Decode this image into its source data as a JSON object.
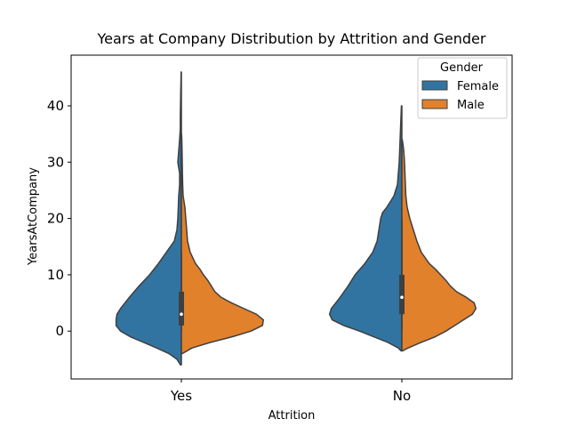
{
  "chart_data": {
    "type": "violin",
    "title": "Years at Company Distribution by Attrition and Gender",
    "xlabel": "Attrition",
    "ylabel": "YearsAtCompany",
    "categories": [
      "Yes",
      "No"
    ],
    "ylim": [
      -8.5,
      49
    ],
    "yticks": [
      0,
      10,
      20,
      30,
      40
    ],
    "legend": {
      "title": "Gender",
      "position": "top-right",
      "entries": [
        "Female",
        "Male"
      ]
    },
    "colors": {
      "Female": "#3274a1",
      "Male": "#e1812c",
      "outline": "#3f3f3f"
    },
    "series": [
      {
        "name": "Female",
        "side": "left",
        "profiles": [
          [
            [
              -6,
              0.01
            ],
            [
              -5,
              0.05
            ],
            [
              -4,
              0.14
            ],
            [
              -3,
              0.28
            ],
            [
              -2,
              0.43
            ],
            [
              -1,
              0.58
            ],
            [
              0,
              0.69
            ],
            [
              1,
              0.74
            ],
            [
              2,
              0.74
            ],
            [
              3,
              0.73
            ],
            [
              4,
              0.69
            ],
            [
              5,
              0.64
            ],
            [
              6,
              0.59
            ],
            [
              8,
              0.48
            ],
            [
              10,
              0.36
            ],
            [
              12,
              0.26
            ],
            [
              14,
              0.17
            ],
            [
              16,
              0.08
            ],
            [
              18,
              0.05
            ],
            [
              20,
              0.04
            ],
            [
              22,
              0.035
            ],
            [
              24,
              0.03
            ],
            [
              26,
              0.02
            ],
            [
              28,
              0.02
            ],
            [
              30,
              0.04
            ],
            [
              32,
              0.03
            ],
            [
              34,
              0.02
            ],
            [
              36,
              0.012
            ],
            [
              38,
              0.012
            ],
            [
              40,
              0.01
            ],
            [
              42,
              0.008
            ],
            [
              44,
              0.005
            ],
            [
              46,
              0.003
            ]
          ],
          [
            [
              -3.5,
              0.01
            ],
            [
              -3,
              0.04
            ],
            [
              -2,
              0.16
            ],
            [
              -1,
              0.32
            ],
            [
              0,
              0.48
            ],
            [
              1,
              0.66
            ],
            [
              2,
              0.79
            ],
            [
              3,
              0.82
            ],
            [
              4,
              0.8
            ],
            [
              5,
              0.75
            ],
            [
              6,
              0.7
            ],
            [
              8,
              0.61
            ],
            [
              10,
              0.53
            ],
            [
              12,
              0.42
            ],
            [
              14,
              0.33
            ],
            [
              16,
              0.28
            ],
            [
              18,
              0.26
            ],
            [
              19,
              0.25
            ],
            [
              20,
              0.24
            ],
            [
              21,
              0.22
            ],
            [
              22,
              0.17
            ],
            [
              23,
              0.13
            ],
            [
              24,
              0.09
            ],
            [
              26,
              0.05
            ],
            [
              28,
              0.04
            ],
            [
              30,
              0.03
            ],
            [
              32,
              0.025
            ],
            [
              34,
              0.02
            ],
            [
              36,
              0.015
            ],
            [
              38,
              0.01
            ],
            [
              40,
              0.005
            ]
          ]
        ]
      },
      {
        "name": "Male",
        "side": "right",
        "profiles": [
          [
            [
              -4,
              0.01
            ],
            [
              -3,
              0.12
            ],
            [
              -2,
              0.33
            ],
            [
              -1,
              0.58
            ],
            [
              0,
              0.79
            ],
            [
              1,
              0.92
            ],
            [
              2,
              0.93
            ],
            [
              3,
              0.85
            ],
            [
              4,
              0.71
            ],
            [
              5,
              0.57
            ],
            [
              6,
              0.45
            ],
            [
              7,
              0.38
            ],
            [
              8,
              0.34
            ],
            [
              9,
              0.3
            ],
            [
              10,
              0.25
            ],
            [
              11,
              0.21
            ],
            [
              12,
              0.16
            ],
            [
              14,
              0.1
            ],
            [
              16,
              0.07
            ],
            [
              18,
              0.06
            ],
            [
              20,
              0.05
            ],
            [
              22,
              0.04
            ],
            [
              24,
              0.02
            ],
            [
              26,
              0.015
            ],
            [
              28,
              0.012
            ],
            [
              30,
              0.01
            ],
            [
              32,
              0.008
            ],
            [
              34,
              0.005
            ],
            [
              35,
              0.002
            ]
          ],
          [
            [
              -3.5,
              0.01
            ],
            [
              -3,
              0.07
            ],
            [
              -2,
              0.22
            ],
            [
              -1,
              0.38
            ],
            [
              0,
              0.5
            ],
            [
              1,
              0.6
            ],
            [
              2,
              0.7
            ],
            [
              3,
              0.8
            ],
            [
              4,
              0.84
            ],
            [
              5,
              0.82
            ],
            [
              6,
              0.73
            ],
            [
              7,
              0.62
            ],
            [
              8,
              0.55
            ],
            [
              9,
              0.5
            ],
            [
              10,
              0.44
            ],
            [
              11,
              0.38
            ],
            [
              12,
              0.31
            ],
            [
              14,
              0.22
            ],
            [
              16,
              0.17
            ],
            [
              18,
              0.13
            ],
            [
              20,
              0.09
            ],
            [
              22,
              0.06
            ],
            [
              24,
              0.045
            ],
            [
              26,
              0.04
            ],
            [
              28,
              0.035
            ],
            [
              30,
              0.03
            ],
            [
              32,
              0.022
            ],
            [
              33,
              0.014
            ],
            [
              34,
              0.005
            ]
          ]
        ]
      }
    ],
    "inner_box": [
      {
        "category": "Yes",
        "q1": 1,
        "median": 3,
        "q3": 7,
        "whisker_low": 0,
        "whisker_high": 14
      },
      {
        "category": "No",
        "q1": 3,
        "median": 6,
        "q3": 10,
        "whisker_low": 0,
        "whisker_high": 20
      }
    ]
  }
}
